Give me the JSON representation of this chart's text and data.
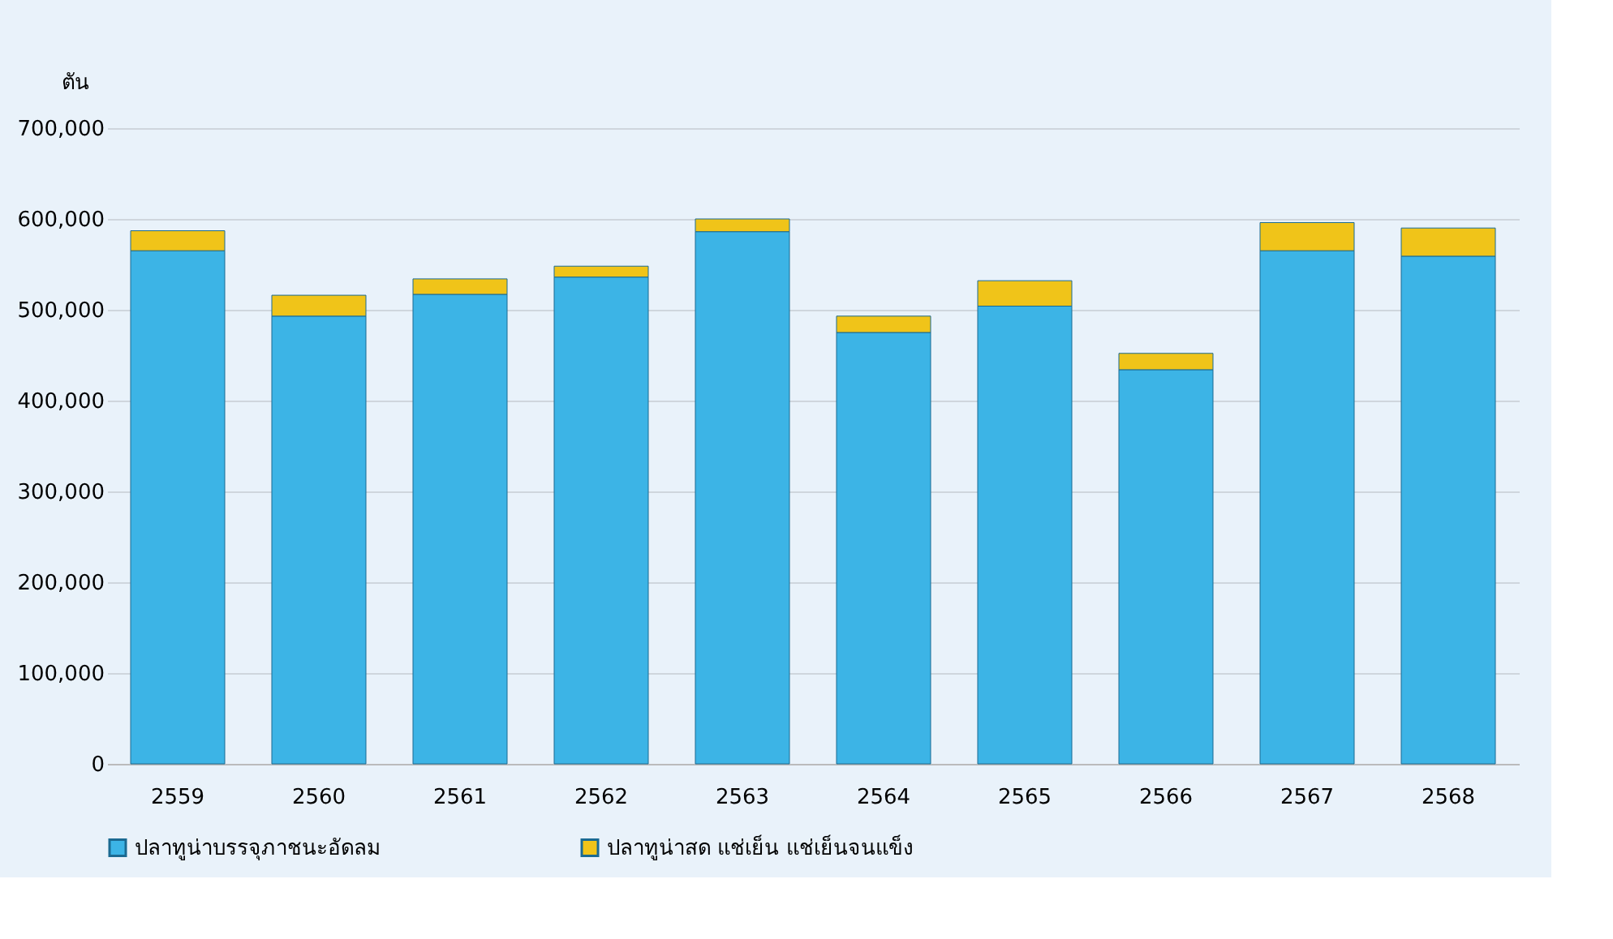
{
  "chart_data": {
    "type": "bar",
    "stacked": true,
    "ylabel": "ตัน",
    "categories": [
      "2559",
      "2560",
      "2561",
      "2562",
      "2563",
      "2564",
      "2565",
      "2566",
      "2567",
      "2568"
    ],
    "series": [
      {
        "name": "ปลาทูน่าบรรจุภาชนะอัดลม",
        "color": "#3cb4e6",
        "values": [
          565000,
          493000,
          517000,
          536000,
          586000,
          475000,
          504000,
          434000,
          565000,
          559000
        ]
      },
      {
        "name": "ปลาทูน่าสด แช่เย็น แช่เย็นจนแข็ง",
        "color": "#f0c419",
        "values": [
          22000,
          23000,
          17000,
          12000,
          14000,
          18000,
          28000,
          18000,
          31000,
          31000
        ]
      }
    ],
    "ylim": [
      0,
      700000
    ],
    "yticks": [
      0,
      {
        "value": 100000,
        "label": "100,000"
      },
      {
        "value": 200000,
        "label": "200,000"
      },
      {
        "value": 300000,
        "label": "300,000"
      },
      {
        "value": 400000,
        "label": "400,000"
      },
      {
        "value": 500000,
        "label": "500,000"
      },
      {
        "value": 600000,
        "label": "600,000"
      },
      {
        "value": 700000,
        "label": "700,000"
      }
    ],
    "grid": "y",
    "legend": "bottom"
  }
}
